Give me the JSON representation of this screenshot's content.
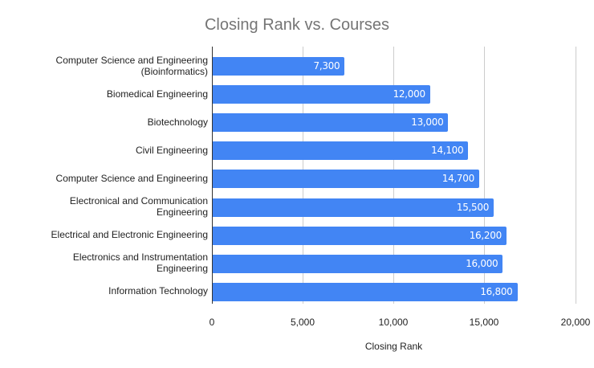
{
  "chart_data": {
    "type": "bar",
    "orientation": "horizontal",
    "title": "Closing Rank vs. Courses",
    "xlabel": "Closing Rank",
    "ylabel": "",
    "categories": [
      "Computer Science and Engineering (Bioinformatics)",
      "Biomedical Engineering",
      "Biotechnology",
      "Civil Engineering",
      "Computer Science and Engineering",
      "Electronical and Communication Engineering",
      "Electrical and Electronic Engineering",
      "Electronics and Instrumentation Engineering",
      "Information Technology"
    ],
    "values": [
      7300,
      12000,
      13000,
      14100,
      14700,
      15500,
      16200,
      16000,
      16800
    ],
    "data_labels": [
      "7,300",
      "12,000",
      "13,000",
      "14,100",
      "14,700",
      "15,500",
      "16,200",
      "16,000",
      "16,800"
    ],
    "xlim": [
      0,
      20000
    ],
    "x_ticks": [
      "0",
      "5,000",
      "10,000",
      "15,000",
      "20,000"
    ],
    "grid": "vertical",
    "legend": "none",
    "bar_color": "#4285f4"
  },
  "labels": {
    "cat0_line1": "Computer Science and Engineering",
    "cat0_line2": "(Bioinformatics)",
    "cat1": "Biomedical Engineering",
    "cat2": "Biotechnology",
    "cat3": "Civil Engineering",
    "cat4": "Computer Science and Engineering",
    "cat5_line1": "Electronical and Communication",
    "cat5_line2": "Engineering",
    "cat6": "Electrical and Electronic Engineering",
    "cat7_line1": "Electronics and Instrumentation",
    "cat7_line2": "Engineering",
    "cat8": "Information Technology"
  }
}
